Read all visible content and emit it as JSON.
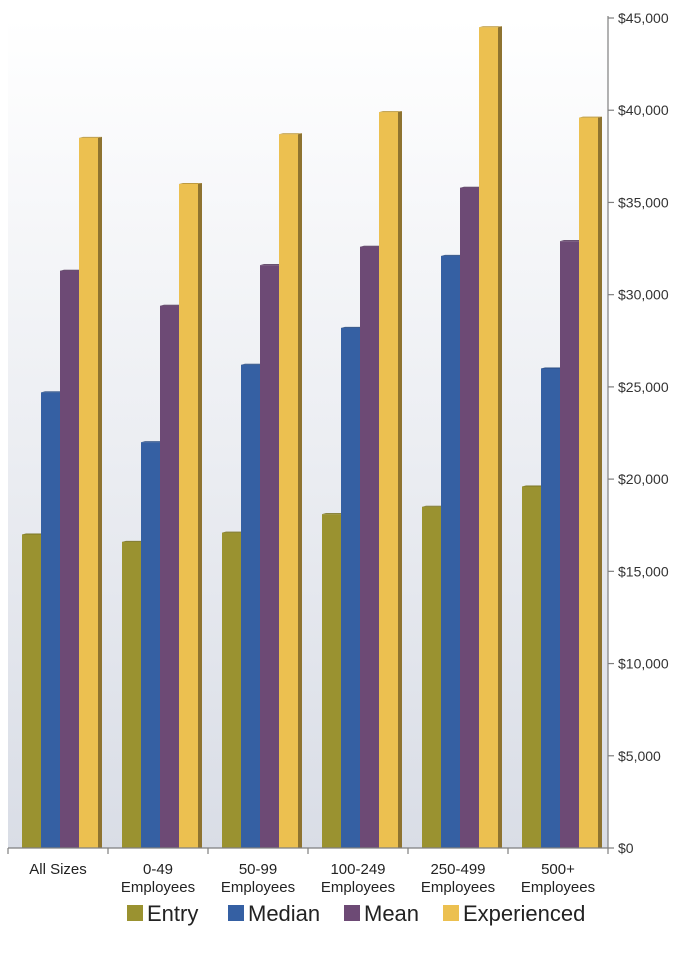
{
  "chart_data": {
    "type": "bar",
    "categories": [
      [
        "All Sizes"
      ],
      [
        "0-49",
        "Employees"
      ],
      [
        "50-99",
        "Employees"
      ],
      [
        "100-249",
        "Employees"
      ],
      [
        "250-499",
        "Employees"
      ],
      [
        "500+",
        "Employees"
      ]
    ],
    "series": [
      {
        "name": "Entry",
        "color": "#9a9230",
        "values": [
          17000,
          16600,
          17100,
          18100,
          18500,
          19600
        ]
      },
      {
        "name": "Median",
        "color": "#3560a3",
        "values": [
          24700,
          22000,
          26200,
          28200,
          32100,
          26000
        ]
      },
      {
        "name": "Mean",
        "color": "#6d4a75",
        "values": [
          31300,
          29400,
          31600,
          32600,
          35800,
          32900
        ]
      },
      {
        "name": "Experienced",
        "color": "#ecc050",
        "values": [
          38500,
          36000,
          38700,
          39900,
          44500,
          39600
        ]
      }
    ],
    "ylim": [
      0,
      45000
    ],
    "yticks": [
      0,
      5000,
      10000,
      15000,
      20000,
      25000,
      30000,
      35000,
      40000,
      45000
    ],
    "ytick_labels": [
      "$0",
      "$5,000",
      "$10,000",
      "$15,000",
      "$20,000",
      "$25,000",
      "$30,000",
      "$35,000",
      "$40,000",
      "$45,000"
    ],
    "y_axis_side": "right",
    "grid": false,
    "legend_position": "bottom"
  }
}
